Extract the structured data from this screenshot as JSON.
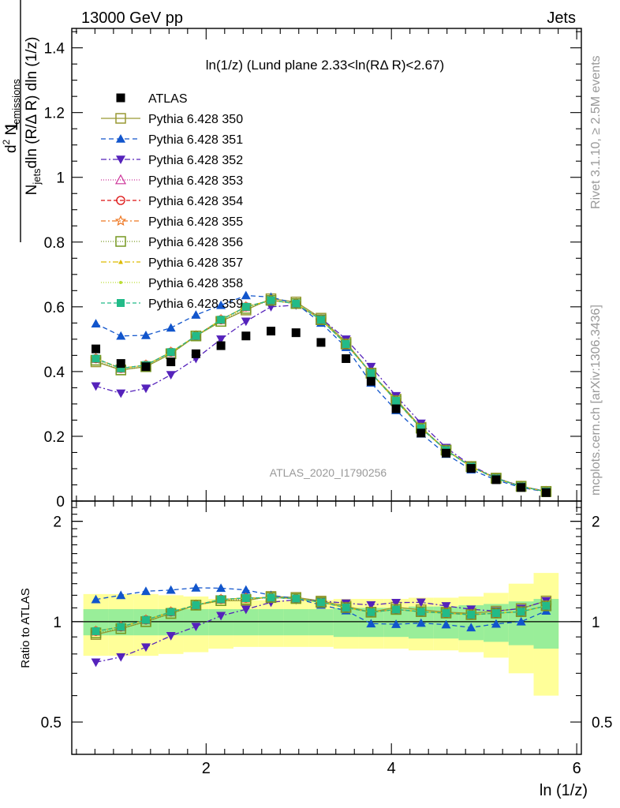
{
  "header": {
    "left_label": "13000 GeV pp",
    "right_label": "Jets"
  },
  "side_labels": {
    "rivet": "Rivet 3.1.10, ≥ 2.5M events",
    "mcplots": "mcplots.cern.ch [arXiv:1306.3436]"
  },
  "watermark": "ATLAS_2020_I1790256",
  "chart_data": {
    "type": "scatter",
    "title": "ln(1/z) (Lund plane 2.33<ln(RΔ R)<2.67)",
    "ylabel_main": "1/N_jets d²N_emissions / dln(R/ΔR) dln(1/z)",
    "ylabel_ratio": "Ratio to ATLAS",
    "xlabel": "ln (1/z)",
    "xlim": [
      0.55,
      6.05
    ],
    "ylim_main": [
      0,
      1.46
    ],
    "ylim_ratio": [
      0.4,
      2.3
    ],
    "log_ratio": true,
    "x_ticks": [
      2,
      4,
      6
    ],
    "y_ticks_main": [
      0,
      0.2,
      0.4,
      0.6,
      0.8,
      1,
      1.2,
      1.4
    ],
    "y_ticks_ratio": [
      0.5,
      1,
      2
    ],
    "x": [
      0.81,
      1.08,
      1.35,
      1.62,
      1.89,
      2.16,
      2.43,
      2.7,
      2.97,
      3.24,
      3.51,
      3.78,
      4.05,
      4.32,
      4.59,
      4.86,
      5.13,
      5.4,
      5.67
    ],
    "atlas": [
      0.47,
      0.425,
      0.415,
      0.43,
      0.455,
      0.48,
      0.51,
      0.525,
      0.52,
      0.49,
      0.44,
      0.37,
      0.285,
      0.21,
      0.148,
      0.101,
      0.066,
      0.042,
      0.026
    ],
    "band_inner": [
      0.09,
      0.09,
      0.09,
      0.09,
      0.09,
      0.09,
      0.09,
      0.09,
      0.09,
      0.09,
      0.1,
      0.1,
      0.1,
      0.11,
      0.11,
      0.12,
      0.13,
      0.15,
      0.17
    ],
    "band_outer": [
      0.21,
      0.21,
      0.21,
      0.2,
      0.19,
      0.17,
      0.16,
      0.16,
      0.16,
      0.16,
      0.17,
      0.17,
      0.17,
      0.18,
      0.18,
      0.19,
      0.22,
      0.3,
      0.4
    ],
    "series": [
      {
        "name": "Pythia 6.428 350",
        "color": "#999933",
        "marker": "square-open",
        "dash": "solid",
        "values": [
          0.43,
          0.405,
          0.415,
          0.455,
          0.51,
          0.555,
          0.59,
          0.625,
          0.615,
          0.565,
          0.49,
          0.395,
          0.315,
          0.228,
          0.158,
          0.107,
          0.071,
          0.046,
          0.03
        ]
      },
      {
        "name": "Pythia 6.428 351",
        "color": "#1155cc",
        "marker": "triangle-up",
        "dash": "6,4",
        "values": [
          0.548,
          0.51,
          0.512,
          0.535,
          0.575,
          0.605,
          0.635,
          0.63,
          0.61,
          0.55,
          0.475,
          0.365,
          0.28,
          0.208,
          0.145,
          0.097,
          0.065,
          0.042,
          0.028
        ]
      },
      {
        "name": "Pythia 6.428 352",
        "color": "#5522bb",
        "marker": "triangle-down",
        "dash": "7,3,2,3",
        "values": [
          0.355,
          0.333,
          0.348,
          0.39,
          0.44,
          0.5,
          0.555,
          0.6,
          0.605,
          0.565,
          0.5,
          0.415,
          0.325,
          0.24,
          0.165,
          0.11,
          0.071,
          0.046,
          0.03
        ]
      },
      {
        "name": "Pythia 6.428 353",
        "color": "#cc3399",
        "marker": "triangle-up-open",
        "dash": "1,2",
        "values": [
          0.44,
          0.41,
          0.42,
          0.46,
          0.51,
          0.56,
          0.6,
          0.62,
          0.61,
          0.56,
          0.485,
          0.395,
          0.31,
          0.225,
          0.157,
          0.106,
          0.07,
          0.045,
          0.029
        ]
      },
      {
        "name": "Pythia 6.428 354",
        "color": "#dd1111",
        "marker": "circle-open",
        "dash": "5,3",
        "values": [
          0.44,
          0.41,
          0.42,
          0.46,
          0.51,
          0.56,
          0.6,
          0.62,
          0.61,
          0.56,
          0.485,
          0.395,
          0.31,
          0.225,
          0.157,
          0.106,
          0.07,
          0.045,
          0.029
        ]
      },
      {
        "name": "Pythia 6.428 355",
        "color": "#ee7722",
        "marker": "star-open",
        "dash": "6,3,2,3",
        "values": [
          0.44,
          0.41,
          0.42,
          0.46,
          0.51,
          0.56,
          0.6,
          0.62,
          0.61,
          0.56,
          0.485,
          0.395,
          0.31,
          0.225,
          0.157,
          0.106,
          0.07,
          0.045,
          0.029
        ]
      },
      {
        "name": "Pythia 6.428 356",
        "color": "#779922",
        "marker": "square-open",
        "dash": "1,2",
        "values": [
          0.435,
          0.405,
          0.415,
          0.455,
          0.51,
          0.555,
          0.595,
          0.62,
          0.61,
          0.56,
          0.485,
          0.395,
          0.31,
          0.225,
          0.157,
          0.106,
          0.07,
          0.045,
          0.029
        ]
      },
      {
        "name": "Pythia 6.428 357",
        "color": "#ddbb00",
        "marker": "tri-small",
        "dash": "7,3,2,3",
        "values": [
          0.44,
          0.41,
          0.42,
          0.46,
          0.51,
          0.56,
          0.6,
          0.62,
          0.61,
          0.56,
          0.485,
          0.395,
          0.31,
          0.225,
          0.157,
          0.106,
          0.07,
          0.045,
          0.029
        ]
      },
      {
        "name": "Pythia 6.428 358",
        "color": "#bbdd33",
        "marker": "dot",
        "dash": "1,2",
        "values": [
          0.44,
          0.41,
          0.42,
          0.46,
          0.51,
          0.56,
          0.6,
          0.62,
          0.61,
          0.56,
          0.485,
          0.395,
          0.31,
          0.225,
          0.157,
          0.106,
          0.07,
          0.045,
          0.029
        ]
      },
      {
        "name": "Pythia 6.428 359",
        "color": "#22bb88",
        "marker": "square-filled",
        "dash": "5,3",
        "values": [
          0.44,
          0.41,
          0.42,
          0.46,
          0.51,
          0.56,
          0.6,
          0.62,
          0.61,
          0.56,
          0.485,
          0.395,
          0.31,
          0.225,
          0.157,
          0.106,
          0.07,
          0.045,
          0.029
        ]
      }
    ],
    "legend": {
      "atlas_label": "ATLAS",
      "placement": "top-left"
    }
  }
}
